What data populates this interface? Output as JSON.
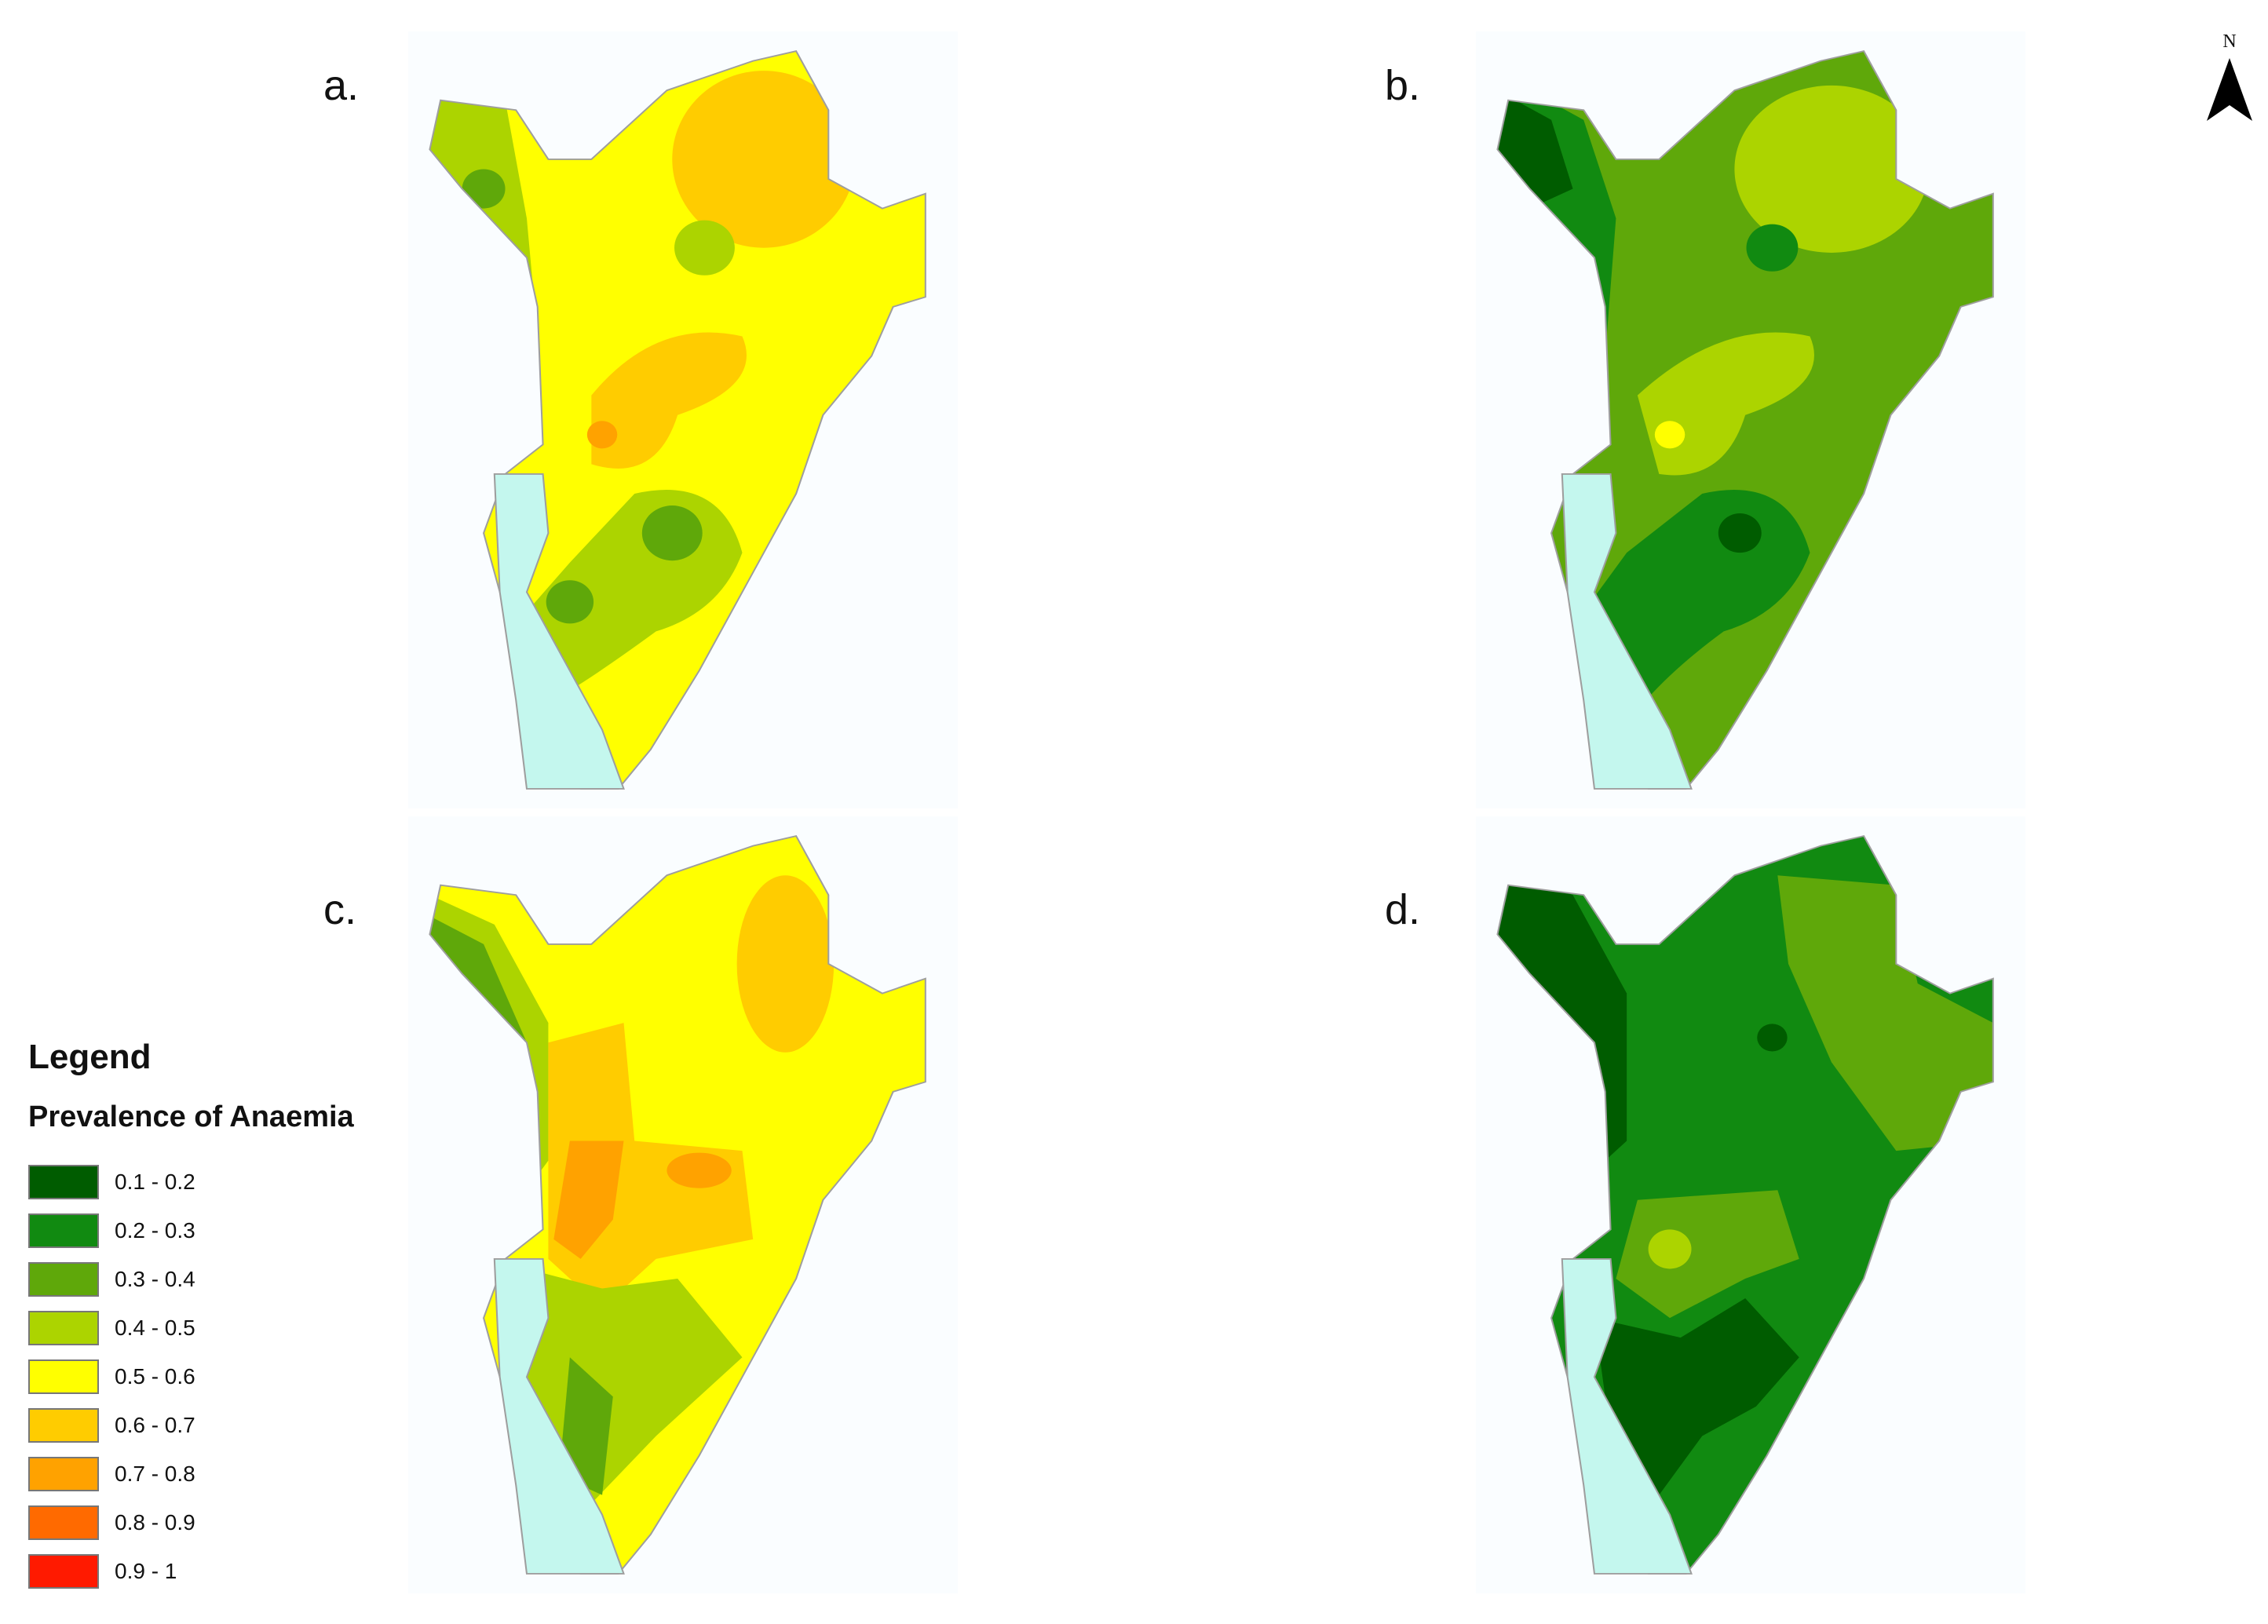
{
  "panels": [
    {
      "label": "a."
    },
    {
      "label": "b."
    },
    {
      "label": "c."
    },
    {
      "label": "d."
    }
  ],
  "north_arrow": {
    "letter": "N"
  },
  "legend": {
    "title": "Legend",
    "subtitle": "Prevalence of Anaemia",
    "classes": [
      {
        "label": "0.1 - 0.2",
        "color": "#005c00"
      },
      {
        "label": "0.2 - 0.3",
        "color": "#118a11"
      },
      {
        "label": "0.3 - 0.4",
        "color": "#5fa80a"
      },
      {
        "label": "0.4 - 0.5",
        "color": "#acd400"
      },
      {
        "label": "0.5 - 0.6",
        "color": "#ffff00"
      },
      {
        "label": "0.6 - 0.7",
        "color": "#ffcc00"
      },
      {
        "label": "0.7 - 0.8",
        "color": "#ffa200"
      },
      {
        "label": "0.8 - 0.9",
        "color": "#ff6a00"
      },
      {
        "label": "0.9 - 1",
        "color": "#ff1a00"
      }
    ]
  },
  "lake_color": "#c4f7ee"
}
